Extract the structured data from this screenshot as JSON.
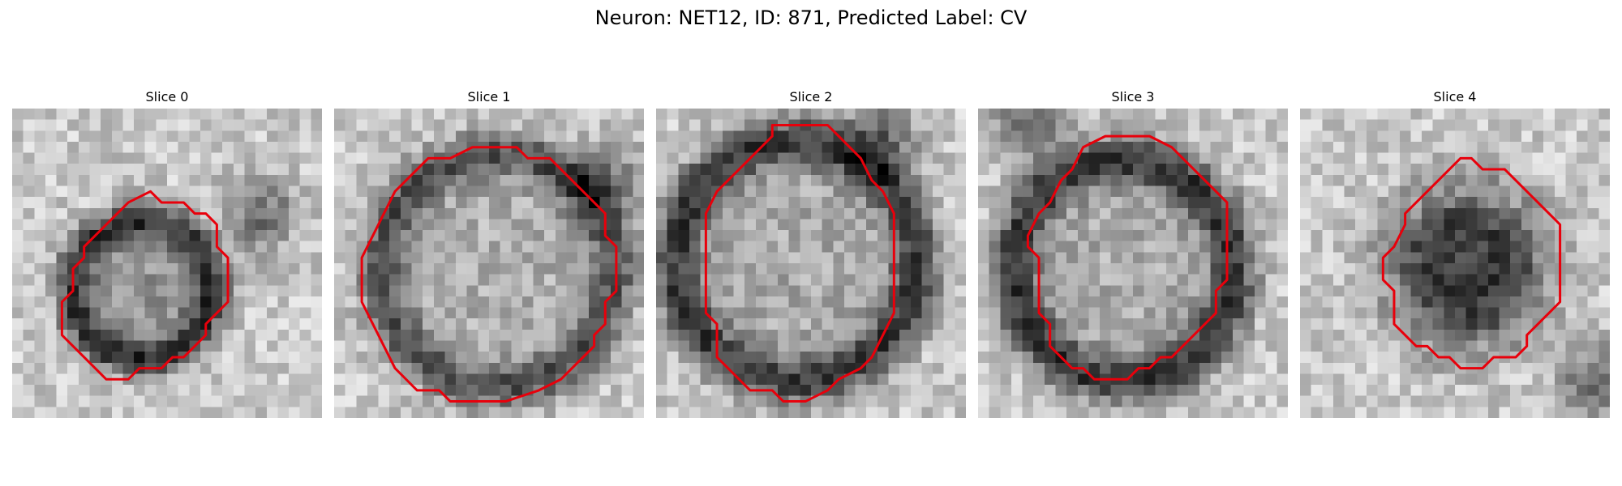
{
  "figure": {
    "title": "Neuron: NET12, ID: 871, Predicted Label: CV",
    "outline_color": "#e8000b"
  },
  "slices": [
    {
      "label": "Slice 0",
      "seed": 11,
      "center_tone": 150,
      "ring_tone": 45,
      "ring_pos": 0.82,
      "ring_width": 0.22,
      "dark_patch_gx": 22,
      "dark_patch_gy": 9,
      "contour": [
        [
          10.5,
          8.5
        ],
        [
          12.5,
          7.5
        ],
        [
          13.5,
          8.5
        ],
        [
          15.5,
          8.5
        ],
        [
          16.5,
          9.5
        ],
        [
          17.5,
          9.5
        ],
        [
          18.5,
          10.5
        ],
        [
          18.5,
          12.5
        ],
        [
          19.5,
          13.5
        ],
        [
          19.5,
          17.5
        ],
        [
          18.5,
          18.5
        ],
        [
          17.5,
          19.5
        ],
        [
          17.5,
          20.5
        ],
        [
          16.5,
          21.5
        ],
        [
          15.5,
          22.5
        ],
        [
          14.5,
          22.5
        ],
        [
          13.5,
          23.5
        ],
        [
          11.5,
          23.5
        ],
        [
          10.5,
          24.5
        ],
        [
          8.5,
          24.5
        ],
        [
          7.5,
          23.5
        ],
        [
          6.5,
          22.5
        ],
        [
          5.5,
          21.5
        ],
        [
          4.5,
          20.5
        ],
        [
          4.5,
          18.5
        ],
        [
          4.5,
          17.5
        ],
        [
          5.5,
          16.5
        ],
        [
          5.5,
          14.5
        ],
        [
          6.5,
          13.5
        ],
        [
          6.5,
          12.5
        ],
        [
          7.5,
          11.5
        ],
        [
          8.5,
          10.5
        ],
        [
          9.5,
          9.5
        ]
      ]
    },
    {
      "label": "Slice 1",
      "seed": 23,
      "center_tone": 175,
      "ring_tone": 80,
      "ring_pos": 0.92,
      "ring_width": 0.18,
      "dark_patch_gx": 24,
      "dark_patch_gy": 6,
      "contour": [
        [
          8.5,
          4.5
        ],
        [
          10.5,
          4.5
        ],
        [
          12.5,
          3.5
        ],
        [
          16.5,
          3.5
        ],
        [
          17.5,
          4.5
        ],
        [
          19.5,
          4.5
        ],
        [
          20.5,
          5.5
        ],
        [
          21.5,
          6.5
        ],
        [
          22.5,
          7.5
        ],
        [
          23.5,
          8.5
        ],
        [
          24.5,
          9.5
        ],
        [
          24.5,
          11.5
        ],
        [
          25.5,
          12.5
        ],
        [
          25.5,
          16.5
        ],
        [
          24.5,
          17.5
        ],
        [
          24.5,
          19.5
        ],
        [
          23.5,
          20.5
        ],
        [
          23.5,
          21.5
        ],
        [
          22.5,
          22.5
        ],
        [
          21.5,
          23.5
        ],
        [
          20.5,
          24.5
        ],
        [
          18.5,
          25.5
        ],
        [
          15.5,
          26.5
        ],
        [
          10.5,
          26.5
        ],
        [
          9.5,
          25.5
        ],
        [
          7.5,
          25.5
        ],
        [
          6.5,
          24.5
        ],
        [
          5.5,
          23.5
        ],
        [
          4.5,
          21.5
        ],
        [
          3.5,
          19.5
        ],
        [
          2.5,
          17.5
        ],
        [
          2.5,
          13.5
        ],
        [
          3.5,
          11.5
        ],
        [
          4.5,
          9.5
        ],
        [
          5.5,
          7.5
        ],
        [
          6.5,
          6.5
        ],
        [
          7.5,
          5.5
        ]
      ]
    },
    {
      "label": "Slice 2",
      "seed": 37,
      "center_tone": 170,
      "ring_tone": 55,
      "ring_pos": 1.0,
      "ring_width": 0.2,
      "dark_patch_gx": 20,
      "dark_patch_gy": 2,
      "contour": [
        [
          10.5,
          1.5
        ],
        [
          13.5,
          1.5
        ],
        [
          15.5,
          1.5
        ],
        [
          16.5,
          2.5
        ],
        [
          17.5,
          3.5
        ],
        [
          18.5,
          4.5
        ],
        [
          19.5,
          6.5
        ],
        [
          20.5,
          7.5
        ],
        [
          21.5,
          9.5
        ],
        [
          21.5,
          12.5
        ],
        [
          21.5,
          18.5
        ],
        [
          20.5,
          20.5
        ],
        [
          19.5,
          22.5
        ],
        [
          18.5,
          23.5
        ],
        [
          16.5,
          24.5
        ],
        [
          15.5,
          25.5
        ],
        [
          13.5,
          26.5
        ],
        [
          11.5,
          26.5
        ],
        [
          10.5,
          25.5
        ],
        [
          8.5,
          25.5
        ],
        [
          7.5,
          24.5
        ],
        [
          6.5,
          23.5
        ],
        [
          5.5,
          22.5
        ],
        [
          5.5,
          19.5
        ],
        [
          4.5,
          18.5
        ],
        [
          4.5,
          16.5
        ],
        [
          4.5,
          9.5
        ],
        [
          5.5,
          7.5
        ],
        [
          6.5,
          6.5
        ],
        [
          7.5,
          5.5
        ],
        [
          8.5,
          4.5
        ],
        [
          9.5,
          3.5
        ],
        [
          10.5,
          2.5
        ]
      ]
    },
    {
      "label": "Slice 3",
      "seed": 53,
      "center_tone": 172,
      "ring_tone": 50,
      "ring_pos": 1.02,
      "ring_width": 0.22,
      "dark_patch_gx": 4,
      "dark_patch_gy": 1,
      "contour": [
        [
          9.5,
          3.5
        ],
        [
          11.5,
          2.5
        ],
        [
          15.5,
          2.5
        ],
        [
          17.5,
          3.5
        ],
        [
          18.5,
          4.5
        ],
        [
          19.5,
          5.5
        ],
        [
          20.5,
          6.5
        ],
        [
          21.5,
          7.5
        ],
        [
          22.5,
          8.5
        ],
        [
          22.5,
          15.5
        ],
        [
          21.5,
          16.5
        ],
        [
          21.5,
          18.5
        ],
        [
          20.5,
          19.5
        ],
        [
          19.5,
          20.5
        ],
        [
          18.5,
          21.5
        ],
        [
          17.5,
          22.5
        ],
        [
          16.5,
          22.5
        ],
        [
          15.5,
          23.5
        ],
        [
          14.5,
          23.5
        ],
        [
          13.5,
          24.5
        ],
        [
          10.5,
          24.5
        ],
        [
          9.5,
          23.5
        ],
        [
          8.5,
          23.5
        ],
        [
          7.5,
          22.5
        ],
        [
          6.5,
          21.5
        ],
        [
          6.5,
          19.5
        ],
        [
          5.5,
          18.5
        ],
        [
          5.5,
          17.5
        ],
        [
          5.5,
          13.5
        ],
        [
          4.5,
          12.5
        ],
        [
          4.5,
          11.5
        ],
        [
          5.5,
          9.5
        ],
        [
          6.5,
          8.5
        ],
        [
          7.5,
          6.5
        ],
        [
          8.5,
          5.5
        ]
      ]
    },
    {
      "label": "Slice 4",
      "seed": 71,
      "center_tone": 60,
      "ring_tone": 150,
      "ring_pos": 0.9,
      "ring_width": 0.25,
      "dark_patch_gx": 26,
      "dark_patch_gy": 24,
      "contour": [
        [
          12.5,
          6.5
        ],
        [
          13.5,
          5.5
        ],
        [
          14.5,
          4.5
        ],
        [
          15.5,
          4.5
        ],
        [
          16.5,
          5.5
        ],
        [
          18.5,
          5.5
        ],
        [
          19.5,
          6.5
        ],
        [
          20.5,
          7.5
        ],
        [
          21.5,
          8.5
        ],
        [
          22.5,
          9.5
        ],
        [
          23.5,
          10.5
        ],
        [
          23.5,
          13.5
        ],
        [
          23.5,
          17.5
        ],
        [
          22.5,
          18.5
        ],
        [
          21.5,
          19.5
        ],
        [
          20.5,
          20.5
        ],
        [
          20.5,
          21.5
        ],
        [
          19.5,
          22.5
        ],
        [
          17.5,
          22.5
        ],
        [
          16.5,
          23.5
        ],
        [
          14.5,
          23.5
        ],
        [
          13.5,
          22.5
        ],
        [
          12.5,
          22.5
        ],
        [
          11.5,
          21.5
        ],
        [
          10.5,
          21.5
        ],
        [
          9.5,
          20.5
        ],
        [
          8.5,
          19.5
        ],
        [
          8.5,
          18.5
        ],
        [
          8.5,
          16.5
        ],
        [
          7.5,
          15.5
        ],
        [
          7.5,
          13.5
        ],
        [
          8.5,
          12.5
        ],
        [
          9.5,
          10.5
        ],
        [
          9.5,
          9.5
        ],
        [
          10.5,
          8.5
        ],
        [
          11.5,
          7.5
        ]
      ]
    }
  ]
}
